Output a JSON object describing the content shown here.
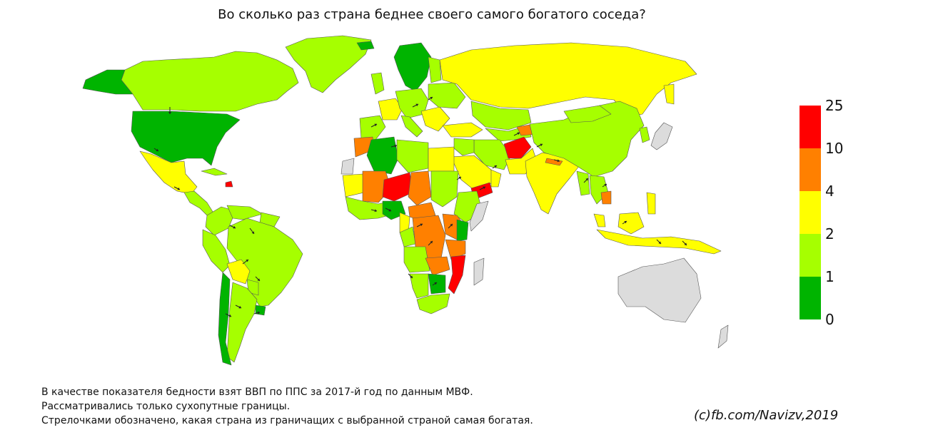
{
  "title": "Во сколько раз страна беднее своего самого богатого соседа?",
  "legend": {
    "colors": [
      "#ff0000",
      "#ff8000",
      "#ffff00",
      "#a6ff00",
      "#00b400"
    ],
    "labels": [
      "25",
      "10",
      "4",
      "2",
      "1",
      "0"
    ]
  },
  "colors": {
    "nodata": "#dcdcdc",
    "border": "#555555",
    "arrow": "#222222"
  },
  "notes": [
    "В качестве показателя бедности взят ВВП по ППС за 2017-й год по данным МВФ.",
    "Рассматривались только сухопутные границы.",
    "Стрелочками обозначено, какая страна из граничащих с выбранной страной самая богатая."
  ],
  "credit": "(c)fb.com/Navizv,2019"
}
